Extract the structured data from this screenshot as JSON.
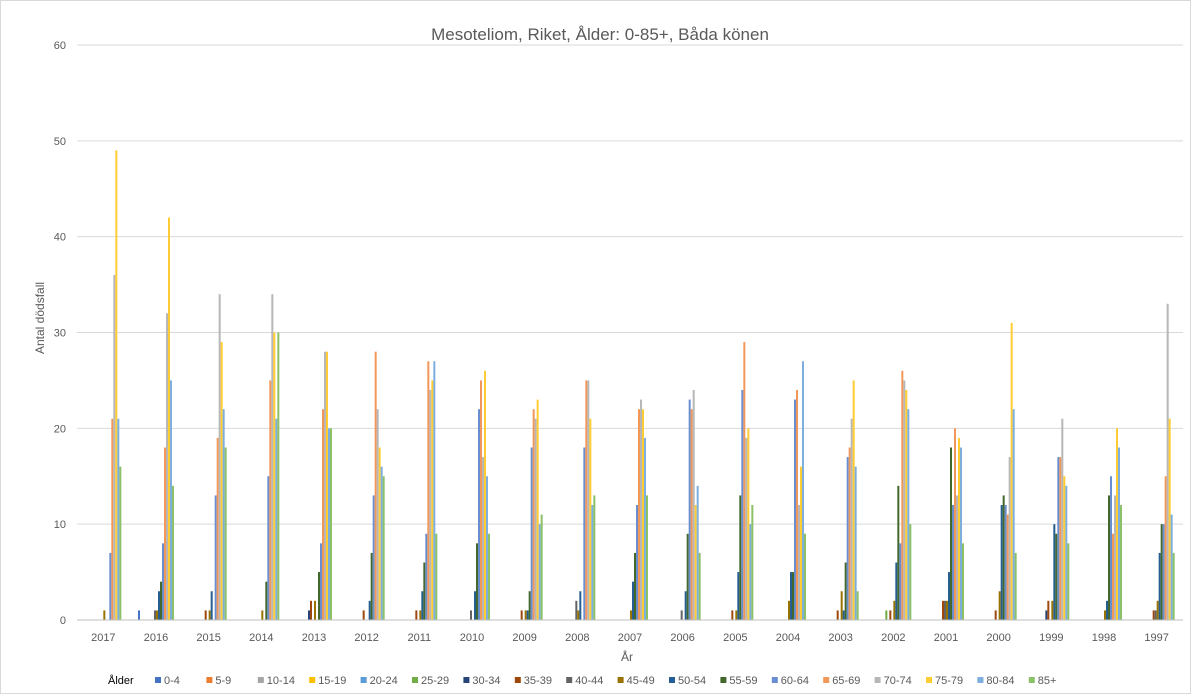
{
  "chart_data": {
    "type": "bar",
    "title": "Mesoteliom, Riket, Ålder: 0-85+, Båda könen",
    "xlabel": "År",
    "ylabel": "Antal dödsfall",
    "ylim": [
      0,
      60
    ],
    "yticks": [
      "0",
      "10",
      "20",
      "30",
      "40",
      "50",
      "60"
    ],
    "grid": true,
    "legend": {
      "placement": "bottom",
      "title": "Ålder"
    },
    "categories": [
      "2017",
      "2016",
      "2015",
      "2014",
      "2013",
      "2012",
      "2011",
      "2010",
      "2009",
      "2008",
      "2007",
      "2006",
      "2005",
      "2004",
      "2003",
      "2002",
      "2001",
      "2000",
      "1999",
      "1998",
      "1997"
    ],
    "series": [
      {
        "name": "0-4",
        "color": "#4472C4",
        "values": [
          0,
          1,
          0,
          0,
          0,
          0,
          0,
          0,
          0,
          0,
          0,
          0,
          0,
          0,
          0,
          0,
          0,
          0,
          0,
          0,
          0
        ]
      },
      {
        "name": "5-9",
        "color": "#ED7D31",
        "values": [
          0,
          0,
          0,
          0,
          0,
          0,
          0,
          0,
          0,
          0,
          0,
          0,
          0,
          0,
          0,
          0,
          0,
          0,
          0,
          0,
          0
        ]
      },
      {
        "name": "10-14",
        "color": "#A5A5A5",
        "values": [
          0,
          0,
          0,
          0,
          0,
          0,
          0,
          0,
          0,
          0,
          0,
          0,
          0,
          0,
          0,
          0,
          0,
          0,
          0,
          0,
          0
        ]
      },
      {
        "name": "15-19",
        "color": "#FFC000",
        "values": [
          0,
          0,
          0,
          0,
          0,
          0,
          0,
          0,
          0,
          0,
          0,
          0,
          0,
          0,
          0,
          0,
          0,
          0,
          0,
          0,
          0
        ]
      },
      {
        "name": "20-24",
        "color": "#5B9BD5",
        "values": [
          0,
          0,
          0,
          0,
          0,
          0,
          0,
          0,
          0,
          0,
          0,
          0,
          0,
          0,
          0,
          0,
          0,
          0,
          0,
          0,
          0
        ]
      },
      {
        "name": "25-29",
        "color": "#70AD47",
        "values": [
          0,
          0,
          0,
          0,
          0,
          0,
          0,
          0,
          0,
          0,
          0,
          0,
          0,
          0,
          0,
          1,
          0,
          0,
          0,
          0,
          0
        ]
      },
      {
        "name": "30-34",
        "color": "#264478",
        "values": [
          0,
          0,
          0,
          0,
          1,
          0,
          0,
          0,
          0,
          0,
          0,
          0,
          0,
          0,
          0,
          0,
          0,
          0,
          1,
          0,
          0
        ]
      },
      {
        "name": "35-39",
        "color": "#9E480E",
        "values": [
          0,
          0,
          1,
          0,
          2,
          1,
          1,
          0,
          1,
          0,
          0,
          0,
          1,
          0,
          1,
          1,
          2,
          1,
          2,
          0,
          1
        ]
      },
      {
        "name": "40-44",
        "color": "#636363",
        "values": [
          0,
          1,
          0,
          0,
          0,
          0,
          0,
          1,
          0,
          2,
          0,
          1,
          0,
          0,
          0,
          0,
          2,
          0,
          0,
          0,
          1
        ]
      },
      {
        "name": "45-49",
        "color": "#997300",
        "values": [
          1,
          1,
          1,
          1,
          2,
          0,
          1,
          0,
          1,
          1,
          1,
          0,
          1,
          2,
          3,
          2,
          2,
          3,
          2,
          1,
          2
        ]
      },
      {
        "name": "50-54",
        "color": "#255E91",
        "values": [
          0,
          3,
          3,
          0,
          0,
          2,
          3,
          3,
          1,
          3,
          4,
          3,
          5,
          5,
          1,
          6,
          5,
          12,
          10,
          2,
          7
        ]
      },
      {
        "name": "55-59",
        "color": "#43682B",
        "values": [
          0,
          4,
          0,
          4,
          5,
          7,
          6,
          8,
          3,
          0,
          7,
          9,
          13,
          5,
          6,
          14,
          18,
          13,
          9,
          13,
          10
        ]
      },
      {
        "name": "60-64",
        "color": "#698ED0",
        "values": [
          7,
          8,
          13,
          15,
          8,
          13,
          9,
          22,
          18,
          18,
          12,
          23,
          24,
          23,
          17,
          8,
          12,
          12,
          17,
          15,
          10
        ]
      },
      {
        "name": "65-69",
        "color": "#F1975A",
        "values": [
          21,
          18,
          19,
          25,
          22,
          28,
          27,
          25,
          22,
          25,
          22,
          22,
          29,
          24,
          18,
          26,
          20,
          11,
          17,
          9,
          15
        ]
      },
      {
        "name": "70-74",
        "color": "#B7B7B7",
        "values": [
          36,
          32,
          34,
          34,
          28,
          22,
          24,
          17,
          21,
          25,
          23,
          24,
          19,
          12,
          21,
          25,
          13,
          17,
          21,
          13,
          33
        ]
      },
      {
        "name": "75-79",
        "color": "#FFCD33",
        "values": [
          49,
          42,
          29,
          30,
          28,
          18,
          25,
          26,
          23,
          21,
          22,
          12,
          20,
          16,
          25,
          24,
          19,
          31,
          15,
          20,
          21
        ]
      },
      {
        "name": "80-84",
        "color": "#7CAFDD",
        "values": [
          21,
          25,
          22,
          21,
          20,
          16,
          27,
          15,
          10,
          12,
          19,
          14,
          10,
          27,
          16,
          22,
          18,
          22,
          14,
          18,
          11
        ]
      },
      {
        "name": "85+",
        "color": "#8CC168",
        "values": [
          16,
          14,
          18,
          30,
          20,
          15,
          9,
          9,
          11,
          13,
          13,
          7,
          12,
          9,
          3,
          10,
          8,
          7,
          8,
          12,
          7
        ]
      }
    ]
  }
}
